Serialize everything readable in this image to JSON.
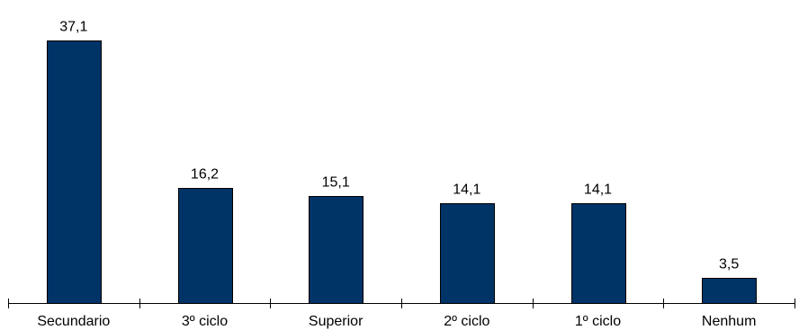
{
  "chart_data": {
    "type": "bar",
    "title": "",
    "xlabel": "",
    "ylabel": "",
    "categories": [
      "Secundario",
      "3º ciclo",
      "Superior",
      "2º ciclo",
      "1º ciclo",
      "Nenhum"
    ],
    "values": [
      37.1,
      16.2,
      15.1,
      14.1,
      14.1,
      3.5
    ],
    "data_labels": [
      "37,1",
      "16,2",
      "15,1",
      "14,1",
      "14,1",
      "3,5"
    ],
    "ylim": [
      0,
      40
    ],
    "grid": false,
    "legend": "none",
    "colors": {
      "bar_fill": "#003366",
      "bar_stroke": "#000000",
      "axis": "#000000",
      "text": "#000000"
    }
  }
}
